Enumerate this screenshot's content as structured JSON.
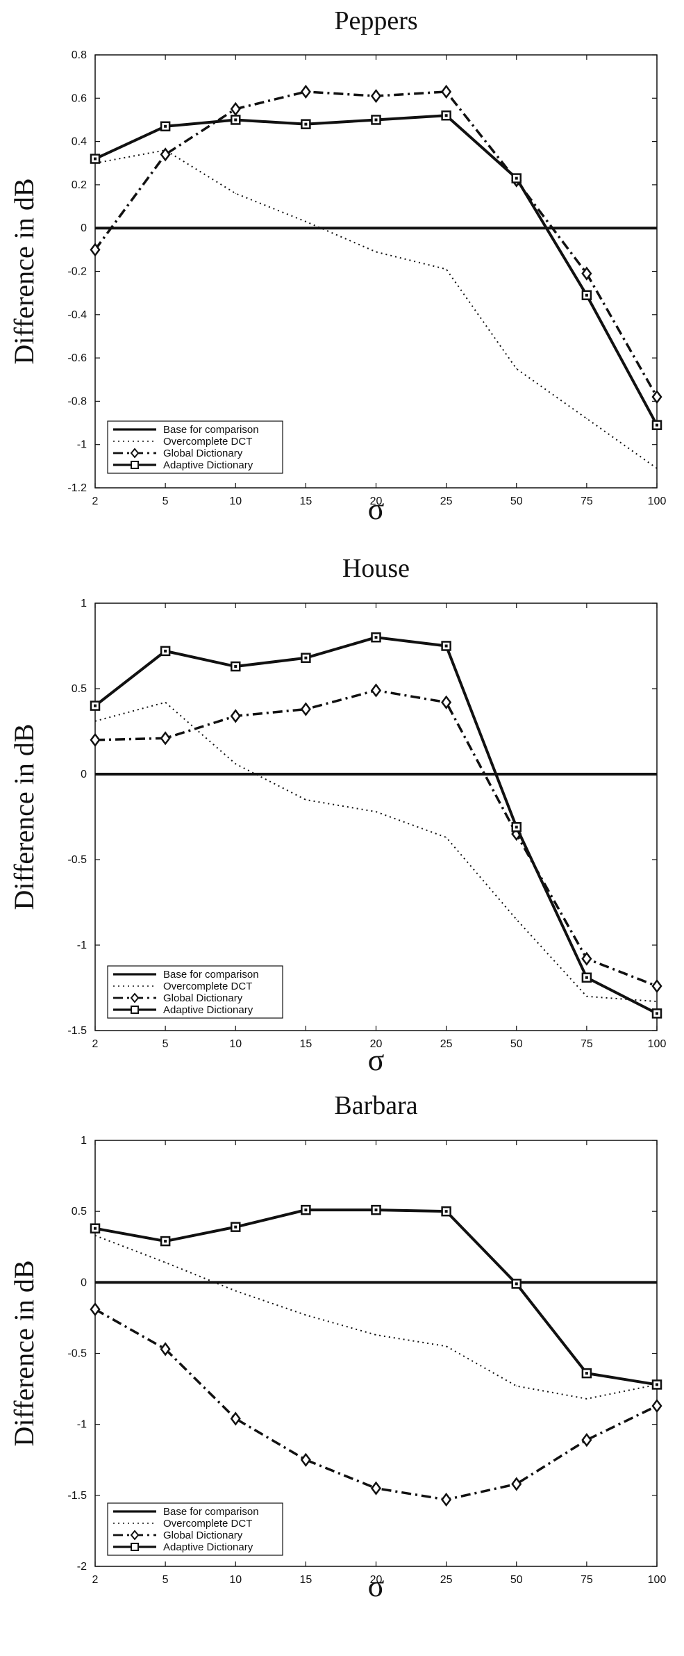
{
  "chart_data": [
    {
      "type": "line",
      "title": "Peppers",
      "xlabel": "σ",
      "ylabel": "Difference in dB",
      "categories": [
        "2",
        "5",
        "10",
        "15",
        "20",
        "25",
        "50",
        "75",
        "100"
      ],
      "ylim": [
        -1.2,
        0.8
      ],
      "yticks": [
        "0.8",
        "0.6",
        "0.4",
        "0.2",
        "0",
        "-0.2",
        "-0.4",
        "-0.6",
        "-0.8",
        "-1",
        "-1.2"
      ],
      "grid": false,
      "legend_position": "bottom-left",
      "series": [
        {
          "name": "Base for comparison",
          "style": "solid",
          "marker": "none",
          "values": [
            0,
            0,
            0,
            0,
            0,
            0,
            0,
            0,
            0
          ]
        },
        {
          "name": "Overcomplete DCT",
          "style": "dotted",
          "marker": "none",
          "values": [
            0.3,
            0.36,
            0.16,
            0.03,
            -0.11,
            -0.19,
            -0.65,
            -0.88,
            -1.11
          ]
        },
        {
          "name": "Global Dictionary",
          "style": "dashdot",
          "marker": "diamond",
          "values": [
            -0.1,
            0.34,
            0.55,
            0.63,
            0.61,
            0.63,
            0.22,
            -0.21,
            -0.78
          ]
        },
        {
          "name": "Adaptive Dictionary",
          "style": "solid",
          "marker": "square",
          "values": [
            0.32,
            0.47,
            0.5,
            0.48,
            0.5,
            0.52,
            0.23,
            -0.31,
            -0.91
          ]
        }
      ]
    },
    {
      "type": "line",
      "title": "House",
      "xlabel": "σ",
      "ylabel": "Difference in dB",
      "categories": [
        "2",
        "5",
        "10",
        "15",
        "20",
        "25",
        "50",
        "75",
        "100"
      ],
      "ylim": [
        -1.5,
        1
      ],
      "yticks": [
        "1",
        "0.5",
        "0",
        "-0.5",
        "-1",
        "-1.5"
      ],
      "grid": false,
      "legend_position": "bottom-left",
      "series": [
        {
          "name": "Base for comparison",
          "style": "solid",
          "marker": "none",
          "values": [
            0,
            0,
            0,
            0,
            0,
            0,
            0,
            0,
            0
          ]
        },
        {
          "name": "Overcomplete DCT",
          "style": "dotted",
          "marker": "none",
          "values": [
            0.31,
            0.42,
            0.06,
            -0.15,
            -0.22,
            -0.37,
            -0.85,
            -1.3,
            -1.33
          ]
        },
        {
          "name": "Global Dictionary",
          "style": "dashdot",
          "marker": "diamond",
          "values": [
            0.2,
            0.21,
            0.34,
            0.38,
            0.49,
            0.42,
            -0.35,
            -1.08,
            -1.24
          ]
        },
        {
          "name": "Adaptive Dictionary",
          "style": "solid",
          "marker": "square",
          "values": [
            0.4,
            0.72,
            0.63,
            0.68,
            0.8,
            0.75,
            -0.31,
            -1.19,
            -1.4
          ]
        }
      ]
    },
    {
      "type": "line",
      "title": "Barbara",
      "xlabel": "σ",
      "ylabel": "Difference in dB",
      "categories": [
        "2",
        "5",
        "10",
        "15",
        "20",
        "25",
        "50",
        "75",
        "100"
      ],
      "ylim": [
        -2,
        1
      ],
      "yticks": [
        "1",
        "0.5",
        "0",
        "-0.5",
        "-1",
        "-1.5",
        "-2"
      ],
      "grid": false,
      "legend_position": "bottom-left",
      "series": [
        {
          "name": "Base for comparison",
          "style": "solid",
          "marker": "none",
          "values": [
            0,
            0,
            0,
            0,
            0,
            0,
            0,
            0,
            0
          ]
        },
        {
          "name": "Overcomplete DCT",
          "style": "dotted",
          "marker": "none",
          "values": [
            0.33,
            0.14,
            -0.06,
            -0.23,
            -0.37,
            -0.45,
            -0.73,
            -0.82,
            -0.72
          ]
        },
        {
          "name": "Global Dictionary",
          "style": "dashdot",
          "marker": "diamond",
          "values": [
            -0.19,
            -0.47,
            -0.96,
            -1.25,
            -1.45,
            -1.53,
            -1.42,
            -1.11,
            -0.87
          ]
        },
        {
          "name": "Adaptive Dictionary",
          "style": "solid",
          "marker": "square",
          "values": [
            0.38,
            0.29,
            0.39,
            0.51,
            0.51,
            0.5,
            -0.01,
            -0.64,
            -0.72
          ]
        }
      ]
    }
  ]
}
